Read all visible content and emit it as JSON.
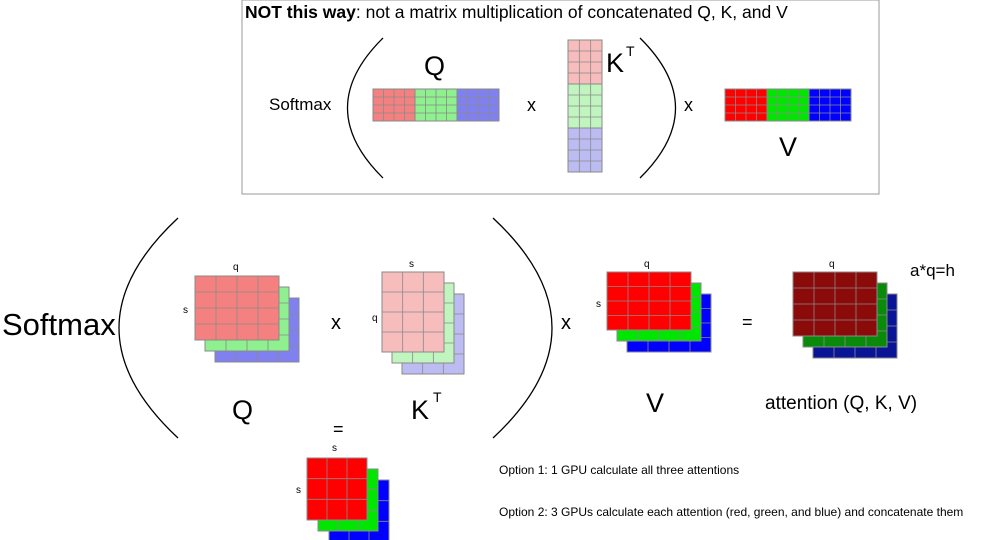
{
  "top_panel": {
    "title_bold": "NOT this way",
    "title_rest": ": not a matrix multiplication of concatenated Q, K, and V",
    "softmax_label": "Softmax",
    "q_label": "Q",
    "k_label": "K",
    "k_superscript": "T",
    "v_label": "V",
    "times_1": "x",
    "times_2": "x"
  },
  "main": {
    "softmax_label": "Softmax",
    "q_label": "Q",
    "k_label": "K",
    "k_superscript": "T",
    "v_label": "V",
    "times_1": "x",
    "times_2": "x",
    "equals": "=",
    "attention_label": "attention (Q, K, V)",
    "head_formula": "a*q=h",
    "q_stack": {
      "top_dim": "q",
      "side_dim": "s"
    },
    "k_stack": {
      "top_dim": "s",
      "side_dim": "q"
    },
    "v_stack": {
      "top_dim": "q",
      "side_dim": "s"
    },
    "attn_stack": {
      "top_dim": "q"
    }
  },
  "scores": {
    "equals": "=",
    "top_dim": "s",
    "side_dim": "s"
  },
  "options": {
    "option1": "Option 1: 1 GPU calculate all three attentions",
    "option2": "Option 2: 3 GPUs calculate each attention (red, green, and blue) and concatenate them"
  },
  "colors": {
    "q_light": [
      "#f48080",
      "#8ef08e",
      "#8080f0"
    ],
    "k_light": [
      "#f7bcbc",
      "#c0f5c0",
      "#bcbcf2"
    ],
    "v_bright": [
      "#ff0000",
      "#00e600",
      "#0000ff"
    ],
    "attn_dark": [
      "#8b0a0a",
      "#0a8a0a",
      "#0a1496"
    ],
    "grid_line": "#8a8a8a",
    "panel_border": "#9a9a9a"
  }
}
